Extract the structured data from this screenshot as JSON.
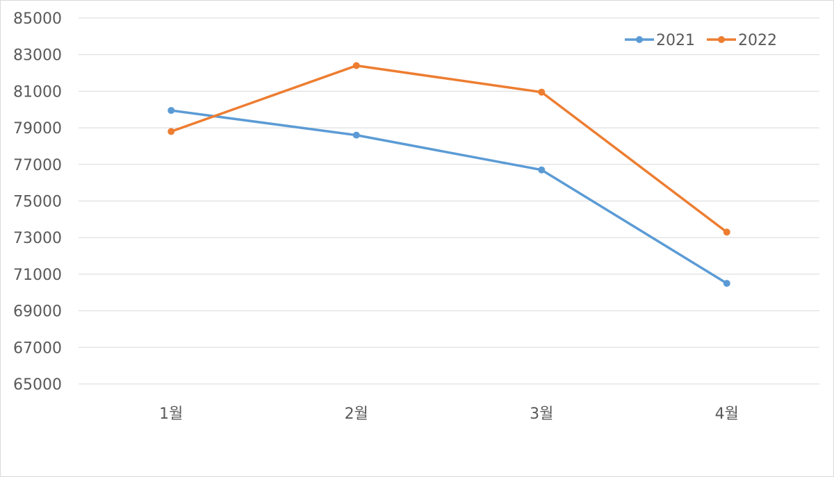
{
  "chart_data": {
    "type": "line",
    "title": "",
    "xlabel": "",
    "ylabel": "",
    "categories": [
      "1월",
      "2월",
      "3월",
      "4월"
    ],
    "ylim": [
      65000,
      85000
    ],
    "yticks": [
      "65000",
      "67000",
      "69000",
      "71000",
      "73000",
      "75000",
      "77000",
      "79000",
      "81000",
      "83000",
      "85000"
    ],
    "grid": "horizontal",
    "legend": "top-right",
    "series": [
      {
        "name": "2021",
        "color": "#5b9bd5",
        "values": [
          79950,
          78600,
          76700,
          70500
        ]
      },
      {
        "name": "2022",
        "color": "#ed7d31",
        "values": [
          78800,
          82400,
          80950,
          73300
        ]
      }
    ]
  }
}
